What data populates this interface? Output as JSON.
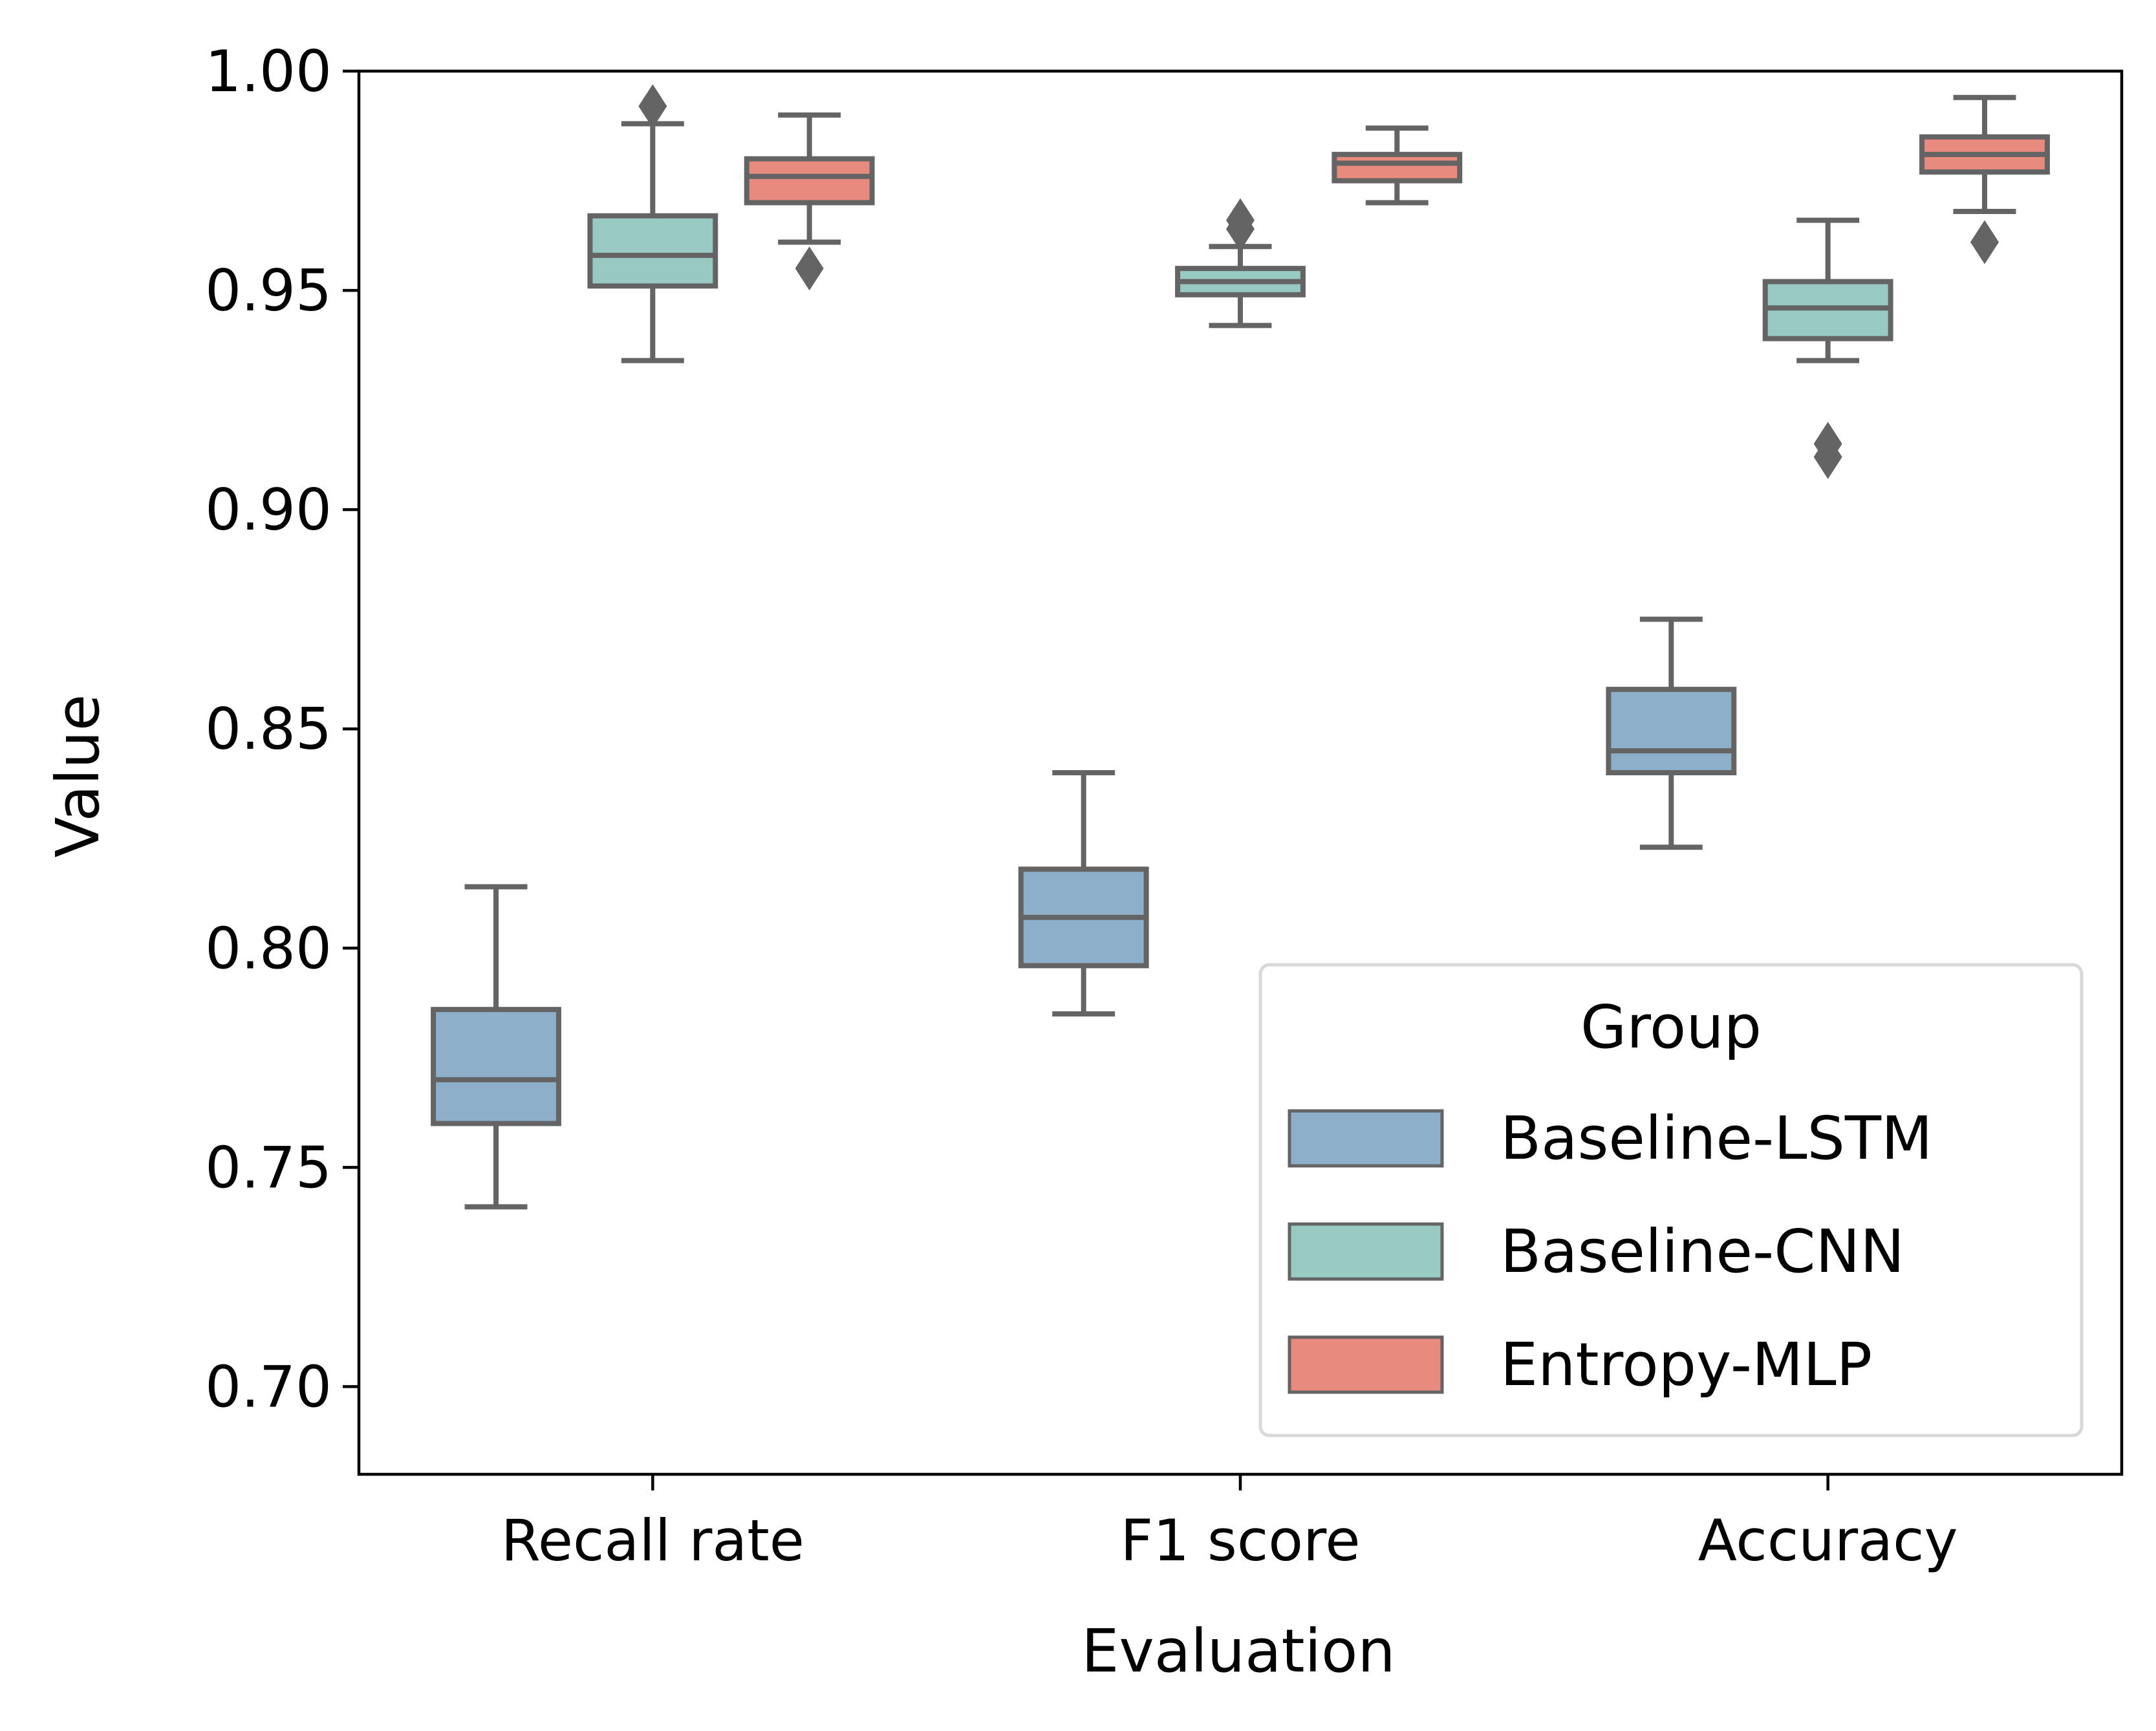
{
  "chart_data": {
    "type": "box",
    "xlabel": "Evaluation",
    "ylabel": "Value",
    "ylim": [
      0.68,
      1.0
    ],
    "yticks": [
      0.7,
      0.75,
      0.8,
      0.85,
      0.9,
      0.95,
      1.0
    ],
    "ytick_labels": [
      "0.70",
      "0.75",
      "0.80",
      "0.85",
      "0.90",
      "0.95",
      "1.00"
    ],
    "categories": [
      "Recall rate",
      "F1 score",
      "Accuracy"
    ],
    "legend": {
      "title": "Group",
      "position": "lower-right"
    },
    "series": [
      {
        "name": "Baseline-LSTM",
        "color": "#8DAFC9",
        "boxes": [
          {
            "whislo": 0.741,
            "q1": 0.76,
            "med": 0.77,
            "q3": 0.786,
            "whishi": 0.814,
            "fliers": []
          },
          {
            "whislo": 0.785,
            "q1": 0.796,
            "med": 0.807,
            "q3": 0.818,
            "whishi": 0.84,
            "fliers": []
          },
          {
            "whislo": 0.823,
            "q1": 0.84,
            "med": 0.845,
            "q3": 0.859,
            "whishi": 0.875,
            "fliers": []
          }
        ]
      },
      {
        "name": "Baseline-CNN",
        "color": "#98C9C2",
        "boxes": [
          {
            "whislo": 0.934,
            "q1": 0.951,
            "med": 0.958,
            "q3": 0.967,
            "whishi": 0.988,
            "fliers": [
              0.992
            ]
          },
          {
            "whislo": 0.942,
            "q1": 0.949,
            "med": 0.952,
            "q3": 0.955,
            "whishi": 0.96,
            "fliers": [
              0.964,
              0.966
            ]
          },
          {
            "whislo": 0.934,
            "q1": 0.939,
            "med": 0.946,
            "q3": 0.952,
            "whishi": 0.966,
            "fliers": [
              0.912,
              0.915
            ]
          }
        ]
      },
      {
        "name": "Entropy-MLP",
        "color": "#E88A7E",
        "boxes": [
          {
            "whislo": 0.961,
            "q1": 0.97,
            "med": 0.976,
            "q3": 0.98,
            "whishi": 0.99,
            "fliers": [
              0.955
            ]
          },
          {
            "whislo": 0.97,
            "q1": 0.975,
            "med": 0.979,
            "q3": 0.981,
            "whishi": 0.987,
            "fliers": []
          },
          {
            "whislo": 0.968,
            "q1": 0.977,
            "med": 0.981,
            "q3": 0.985,
            "whishi": 0.994,
            "fliers": [
              0.961
            ]
          }
        ]
      }
    ]
  }
}
